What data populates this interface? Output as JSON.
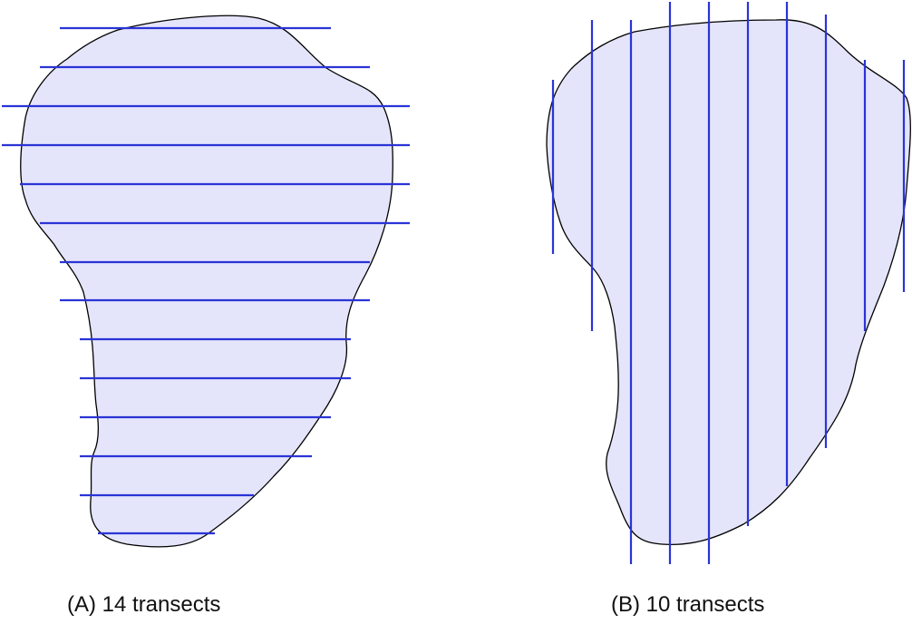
{
  "colors": {
    "region_fill": "#e4e4fb",
    "region_stroke": "#000000",
    "transect_stroke": "#2a34d6",
    "background": "#ffffff",
    "caption_text": "#111111"
  },
  "panels": [
    {
      "id": "A",
      "caption": "(A) 14 transects",
      "transect_orientation": "horizontal",
      "transect_count": 14
    },
    {
      "id": "B",
      "caption": "(B) 10 transects",
      "transect_orientation": "vertical",
      "transect_count": 10
    }
  ]
}
